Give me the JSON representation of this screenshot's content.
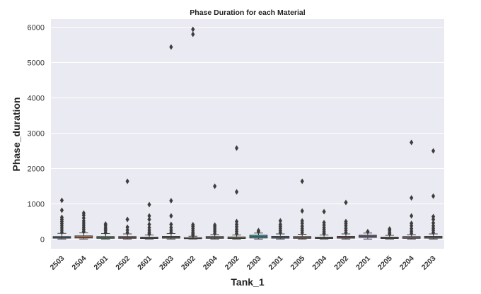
{
  "chart_data": {
    "type": "boxplot",
    "title": "Phase Duration for each Material",
    "xlabel": "Tank_1",
    "ylabel": "Phase_duration",
    "ylim": [
      -270,
      6230
    ],
    "yticks": [
      0,
      1000,
      2000,
      3000,
      4000,
      5000,
      6000
    ],
    "grid": true,
    "legend": "none",
    "categories": [
      "2503",
      "2504",
      "2501",
      "2502",
      "2601",
      "2603",
      "2602",
      "2604",
      "2302",
      "2303",
      "2301",
      "2305",
      "2304",
      "2202",
      "2201",
      "2205",
      "2204",
      "2203"
    ],
    "series": [
      {
        "q1": 30,
        "median": 45,
        "q3": 75,
        "whisker_low": 5,
        "whisker_high": 165,
        "outliers": [
          200,
          260,
          320,
          380,
          440,
          500,
          560,
          620,
          820,
          1100
        ],
        "color": "#3a6ca8"
      },
      {
        "q1": 35,
        "median": 55,
        "q3": 95,
        "whisker_low": 5,
        "whisker_high": 180,
        "outliers": [
          220,
          280,
          340,
          400,
          460,
          520,
          600,
          680,
          740
        ],
        "color": "#d9774a"
      },
      {
        "q1": 25,
        "median": 40,
        "q3": 75,
        "whisker_low": 5,
        "whisker_high": 160,
        "outliers": [
          190,
          240,
          290,
          340,
          390,
          430
        ],
        "color": "#4a9a5a"
      },
      {
        "q1": 25,
        "median": 45,
        "q3": 75,
        "whisker_low": 5,
        "whisker_high": 150,
        "outliers": [
          190,
          260,
          340,
          560,
          1640
        ],
        "color": "#c44a4a"
      },
      {
        "q1": 20,
        "median": 35,
        "q3": 60,
        "whisker_low": 5,
        "whisker_high": 120,
        "outliers": [
          150,
          200,
          260,
          330,
          420,
          560,
          660,
          980
        ],
        "color": "#7d65a8"
      },
      {
        "q1": 30,
        "median": 50,
        "q3": 80,
        "whisker_low": 5,
        "whisker_high": 160,
        "outliers": [
          200,
          260,
          330,
          420,
          660,
          1090,
          5440
        ],
        "color": "#8a6a55"
      },
      {
        "q1": 15,
        "median": 25,
        "q3": 45,
        "whisker_low": 5,
        "whisker_high": 85,
        "outliers": [
          110,
          150,
          190,
          240,
          300,
          360,
          410,
          5800,
          5940
        ],
        "color": "#d585bf"
      },
      {
        "q1": 25,
        "median": 45,
        "q3": 75,
        "whisker_low": 5,
        "whisker_high": 130,
        "outliers": [
          170,
          230,
          290,
          350,
          400,
          1500
        ],
        "color": "#7f7f7f"
      },
      {
        "q1": 20,
        "median": 35,
        "q3": 65,
        "whisker_low": 5,
        "whisker_high": 120,
        "outliers": [
          160,
          220,
          280,
          350,
          420,
          500,
          1340,
          2580
        ],
        "color": "#b5b63a"
      },
      {
        "q1": 35,
        "median": 75,
        "q3": 115,
        "whisker_low": 5,
        "whisker_high": 175,
        "outliers": [
          215,
          245
        ],
        "color": "#33a3b3"
      },
      {
        "q1": 30,
        "median": 45,
        "q3": 80,
        "whisker_low": 5,
        "whisker_high": 150,
        "outliers": [
          190,
          240,
          300,
          360,
          420,
          520
        ],
        "color": "#3a6ca8"
      },
      {
        "q1": 25,
        "median": 45,
        "q3": 75,
        "whisker_low": 5,
        "whisker_high": 140,
        "outliers": [
          180,
          240,
          300,
          370,
          450,
          520,
          800,
          1640
        ],
        "color": "#d9774a"
      },
      {
        "q1": 20,
        "median": 35,
        "q3": 60,
        "whisker_low": 5,
        "whisker_high": 120,
        "outliers": [
          160,
          210,
          270,
          330,
          400,
          470,
          780
        ],
        "color": "#4a9a5a"
      },
      {
        "q1": 30,
        "median": 50,
        "q3": 80,
        "whisker_low": 5,
        "whisker_high": 150,
        "outliers": [
          190,
          250,
          310,
          380,
          440,
          500,
          1040
        ],
        "color": "#c44a4a"
      },
      {
        "q1": 50,
        "median": 85,
        "q3": 115,
        "whisker_low": 5,
        "whisker_high": 175,
        "outliers": [
          215
        ],
        "color": "#7d65a8"
      },
      {
        "q1": 20,
        "median": 35,
        "q3": 60,
        "whisker_low": 5,
        "whisker_high": 110,
        "outliers": [
          150,
          200,
          250,
          290
        ],
        "color": "#8a6a55"
      },
      {
        "q1": 25,
        "median": 45,
        "q3": 75,
        "whisker_low": 5,
        "whisker_high": 130,
        "outliers": [
          170,
          230,
          300,
          380,
          450,
          660,
          1170,
          2740
        ],
        "color": "#d585bf"
      },
      {
        "q1": 30,
        "median": 50,
        "q3": 80,
        "whisker_low": 5,
        "whisker_high": 150,
        "outliers": [
          190,
          250,
          310,
          380,
          460,
          560,
          640,
          1220,
          2500
        ],
        "color": "#7f7f7f"
      }
    ]
  }
}
